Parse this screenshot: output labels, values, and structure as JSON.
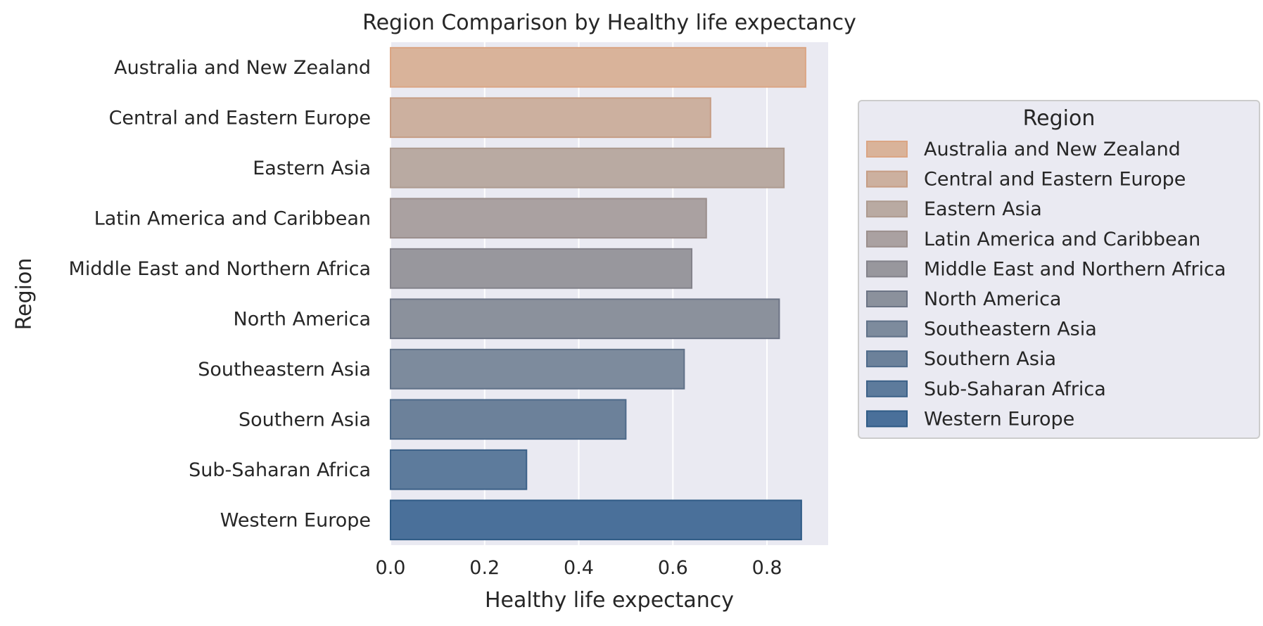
{
  "chart_data": {
    "type": "bar",
    "orientation": "horizontal",
    "title": "Region Comparison by Healthy life expectancy",
    "xlabel": "Healthy life expectancy",
    "ylabel": "Region",
    "xlim": [
      0,
      0.93
    ],
    "xticks": [
      "0.0",
      "0.2",
      "0.4",
      "0.6",
      "0.8"
    ],
    "grid": true,
    "legend_position": "right",
    "legend_title": "Region",
    "categories": [
      "Australia and New Zealand",
      "Central and Eastern Europe",
      "Eastern Asia",
      "Latin America and Caribbean",
      "Middle East and Northern Africa",
      "North America",
      "Southeastern Asia",
      "Southern Asia",
      "Sub-Saharan Africa",
      "Western Europe"
    ],
    "values": [
      0.882,
      0.68,
      0.836,
      0.671,
      0.64,
      0.826,
      0.624,
      0.5,
      0.289,
      0.873
    ],
    "colors": [
      "#d9b39a",
      "#ccb09f",
      "#b9aaa2",
      "#aaa1a1",
      "#98979d",
      "#8b919c",
      "#7d8b9d",
      "#6c819a",
      "#5d7b9c",
      "#4a709a"
    ],
    "edge_colors": [
      "#dba584",
      "#c69d84",
      "#ad9a8f",
      "#9a8e8c",
      "#83828a",
      "#6c7485",
      "#607188",
      "#4e6a8a",
      "#3c6188",
      "#2f5b86"
    ]
  }
}
